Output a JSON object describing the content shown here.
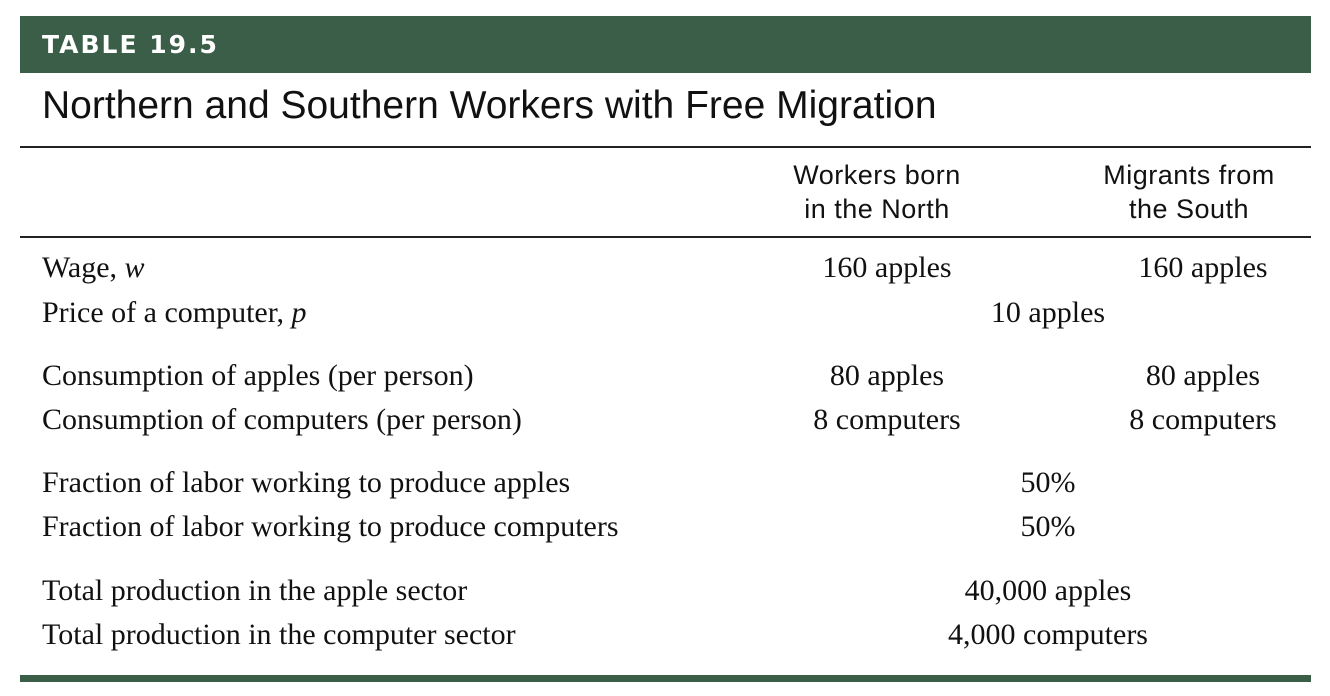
{
  "table": {
    "number_label": "TABLE 19.5",
    "title": "Northern and Southern Workers with Free Migration",
    "columns": [
      {
        "line1": "Workers born",
        "line2": "in the North"
      },
      {
        "line1": "Migrants from",
        "line2": "the South"
      }
    ],
    "rows": [
      {
        "label": "Wage, ",
        "label_var": "w",
        "north": "160 apples",
        "south": "160 apples"
      },
      {
        "label": "Price of a computer, ",
        "label_var": "p",
        "shared": "10 apples"
      },
      {
        "label": "Consumption of apples (per person)",
        "north": "80 apples",
        "south": "80 apples"
      },
      {
        "label": "Consumption of computers (per person)",
        "north": "8 computers",
        "south": "8 computers"
      },
      {
        "label": "Fraction of labor working to produce apples",
        "shared": "50%"
      },
      {
        "label": "Fraction of labor working to produce computers",
        "shared": "50%"
      },
      {
        "label": "Total production in the apple sector",
        "shared": "40,000 apples"
      },
      {
        "label": "Total production in the computer sector",
        "shared": "4,000 computers"
      }
    ]
  },
  "colors": {
    "banner": "#3a5e48",
    "text": "#111111"
  }
}
